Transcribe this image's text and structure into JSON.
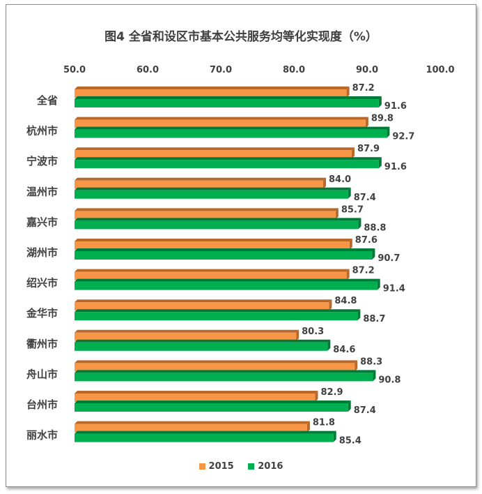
{
  "chart_data": {
    "type": "bar",
    "orientation": "horizontal",
    "title": "图4 全省和设区市基本公共服务均等化实现度（%）",
    "categories": [
      "全省",
      "杭州市",
      "宁波市",
      "温州市",
      "嘉兴市",
      "湖州市",
      "绍兴市",
      "金华市",
      "衢州市",
      "舟山市",
      "台州市",
      "丽水市"
    ],
    "series": [
      {
        "name": "2015",
        "color": "#f79646",
        "values": [
          87.2,
          89.8,
          87.9,
          84.0,
          85.7,
          87.6,
          87.2,
          84.8,
          80.3,
          88.3,
          82.9,
          81.8
        ]
      },
      {
        "name": "2016",
        "color": "#00b050",
        "values": [
          91.6,
          92.7,
          91.6,
          87.4,
          88.8,
          90.7,
          91.4,
          88.7,
          84.6,
          90.8,
          87.4,
          85.4
        ]
      }
    ],
    "value_labels": [
      [
        "87.2",
        "89.8",
        "87.9",
        "84.0",
        "85.7",
        "87.6",
        "87.2",
        "84.8",
        "80.3",
        "88.3",
        "82.9",
        "81.8"
      ],
      [
        "91.6",
        "92.7",
        "91.6",
        "87.4",
        "88.8",
        "90.7",
        "91.4",
        "88.7",
        "84.6",
        "90.8",
        "87.4",
        "85.4"
      ]
    ],
    "xlim": [
      50,
      100
    ],
    "xticks": [
      "50.0",
      "60.0",
      "70.0",
      "80.0",
      "90.0",
      "100.0"
    ],
    "axis_position": "top",
    "grid": false,
    "legend_position": "bottom",
    "style": "3d-bars"
  }
}
